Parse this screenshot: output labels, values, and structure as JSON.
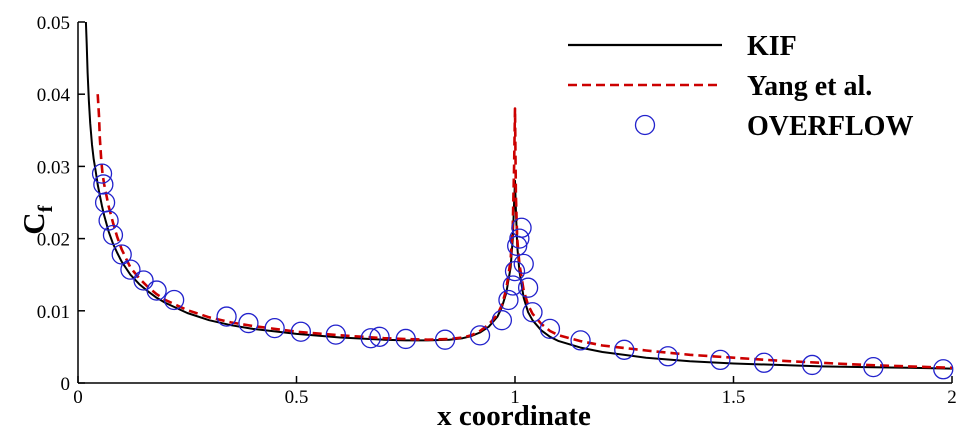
{
  "chart_data": {
    "type": "line",
    "title": "",
    "xlabel": "x coordinate",
    "ylabel": {
      "main": "C",
      "sub": "f"
    },
    "xlim": [
      0,
      2
    ],
    "ylim": [
      0,
      0.05
    ],
    "xticks": [
      {
        "value": 0,
        "label": "0"
      },
      {
        "value": 0.5,
        "label": "0.5"
      },
      {
        "value": 1,
        "label": "1"
      },
      {
        "value": 1.5,
        "label": "1.5"
      },
      {
        "value": 2,
        "label": "2"
      }
    ],
    "yticks": [
      {
        "value": 0,
        "label": "0"
      },
      {
        "value": 0.01,
        "label": "0.01"
      },
      {
        "value": 0.02,
        "label": "0.02"
      },
      {
        "value": 0.03,
        "label": "0.03"
      },
      {
        "value": 0.04,
        "label": "0.04"
      },
      {
        "value": 0.05,
        "label": "0.05"
      }
    ],
    "grid": false,
    "legend_position": "top-right",
    "series": [
      {
        "name": "KIF",
        "style": "solid-line",
        "color": "#000000",
        "x": [
          0.018,
          0.02,
          0.022,
          0.025,
          0.028,
          0.032,
          0.036,
          0.04,
          0.045,
          0.05,
          0.055,
          0.06,
          0.07,
          0.08,
          0.09,
          0.1,
          0.12,
          0.14,
          0.16,
          0.18,
          0.2,
          0.25,
          0.3,
          0.35,
          0.4,
          0.5,
          0.6,
          0.7,
          0.75,
          0.8,
          0.85,
          0.88,
          0.9,
          0.92,
          0.94,
          0.96,
          0.97,
          0.98,
          0.99,
          0.995,
          0.998,
          1.0,
          1.002,
          1.005,
          1.01,
          1.02,
          1.03,
          1.04,
          1.06,
          1.08,
          1.1,
          1.15,
          1.2,
          1.3,
          1.4,
          1.5,
          1.6,
          1.7,
          1.8,
          1.9,
          2.0
        ],
        "y": [
          0.05,
          0.047,
          0.043,
          0.039,
          0.036,
          0.033,
          0.031,
          0.0295,
          0.0275,
          0.026,
          0.0245,
          0.0232,
          0.021,
          0.0193,
          0.018,
          0.0168,
          0.015,
          0.0137,
          0.0127,
          0.0118,
          0.0111,
          0.0097,
          0.0087,
          0.008,
          0.0075,
          0.0068,
          0.0063,
          0.006,
          0.0059,
          0.0059,
          0.006,
          0.0062,
          0.0065,
          0.007,
          0.0078,
          0.0092,
          0.0105,
          0.0125,
          0.016,
          0.02,
          0.025,
          0.028,
          0.024,
          0.019,
          0.0155,
          0.0118,
          0.0098,
          0.0087,
          0.0073,
          0.0064,
          0.0058,
          0.0049,
          0.0043,
          0.0035,
          0.003,
          0.0027,
          0.0025,
          0.0023,
          0.0022,
          0.0021,
          0.002
        ]
      },
      {
        "name": "Yang et al.",
        "style": "dashed-line",
        "color": "#cc0000",
        "x": [
          0.045,
          0.048,
          0.05,
          0.053,
          0.056,
          0.06,
          0.065,
          0.07,
          0.08,
          0.09,
          0.1,
          0.12,
          0.14,
          0.16,
          0.18,
          0.2,
          0.25,
          0.3,
          0.35,
          0.4,
          0.5,
          0.6,
          0.7,
          0.75,
          0.8,
          0.85,
          0.88,
          0.9,
          0.92,
          0.94,
          0.96,
          0.97,
          0.98,
          0.99,
          0.995,
          0.998,
          1.0,
          1.002,
          1.005,
          1.01,
          1.02,
          1.03,
          1.04,
          1.06,
          1.08,
          1.1,
          1.15,
          1.2,
          1.3,
          1.4,
          1.5,
          1.6,
          1.7,
          1.8,
          1.9,
          2.0
        ],
        "y": [
          0.04,
          0.037,
          0.034,
          0.031,
          0.029,
          0.0275,
          0.026,
          0.0245,
          0.0222,
          0.0202,
          0.0185,
          0.016,
          0.0145,
          0.0133,
          0.0123,
          0.0115,
          0.0101,
          0.0091,
          0.0084,
          0.0079,
          0.0071,
          0.0066,
          0.0062,
          0.0061,
          0.006,
          0.0061,
          0.0063,
          0.0066,
          0.0072,
          0.0081,
          0.0095,
          0.0108,
          0.013,
          0.017,
          0.022,
          0.03,
          0.038,
          0.026,
          0.02,
          0.0165,
          0.0128,
          0.0108,
          0.0096,
          0.0082,
          0.0072,
          0.0066,
          0.0058,
          0.0052,
          0.0045,
          0.0039,
          0.0035,
          0.0031,
          0.0028,
          0.0025,
          0.0023,
          0.0021
        ]
      },
      {
        "name": "OVERFLOW",
        "style": "circle-markers",
        "color": "#2222cc",
        "x": [
          0.055,
          0.058,
          0.062,
          0.07,
          0.08,
          0.1,
          0.12,
          0.15,
          0.18,
          0.22,
          0.34,
          0.39,
          0.45,
          0.51,
          0.59,
          0.67,
          0.69,
          0.75,
          0.84,
          0.92,
          0.97,
          0.985,
          0.995,
          1.0,
          1.005,
          1.01,
          1.015,
          1.02,
          1.03,
          1.04,
          1.08,
          1.15,
          1.25,
          1.35,
          1.47,
          1.57,
          1.68,
          1.82,
          1.98
        ],
        "y": [
          0.029,
          0.0275,
          0.025,
          0.0225,
          0.0205,
          0.0178,
          0.0157,
          0.0142,
          0.0128,
          0.0115,
          0.0092,
          0.0083,
          0.0076,
          0.0071,
          0.0067,
          0.0062,
          0.0064,
          0.0061,
          0.006,
          0.0066,
          0.0087,
          0.0115,
          0.0135,
          0.0155,
          0.019,
          0.02,
          0.0215,
          0.0165,
          0.0132,
          0.0098,
          0.0075,
          0.0059,
          0.0046,
          0.0037,
          0.0032,
          0.0028,
          0.0025,
          0.0022,
          0.0019
        ]
      }
    ]
  }
}
